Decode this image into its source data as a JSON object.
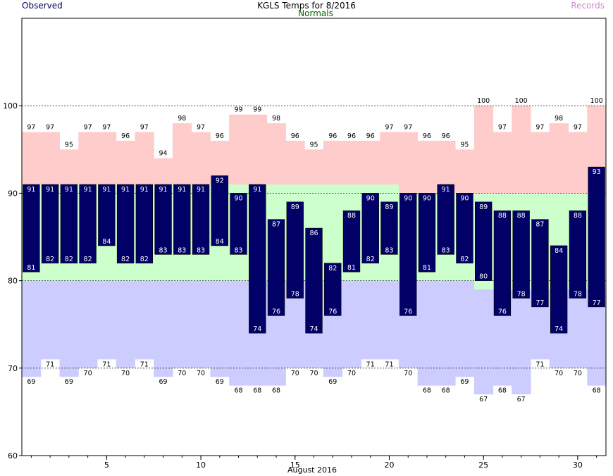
{
  "header": {
    "observed_label": "Observed",
    "title": "KGLS Temps for 8/2016",
    "normals_label": "Normals",
    "records_label": "Records"
  },
  "colors": {
    "observed_bar": "#000066",
    "record_high_fill": "#ffcccc",
    "normal_fill": "#ccffcc",
    "record_low_fill": "#ccccff",
    "observed_text": "#000066",
    "normals_text": "#006600",
    "records_text": "#cc88cc"
  },
  "chart_data": {
    "type": "bar",
    "title": "KGLS Temps for 8/2016",
    "xlabel": "August 2016",
    "ylabel": "",
    "ylim": [
      60,
      110
    ],
    "yticks": [
      60,
      70,
      80,
      90,
      100
    ],
    "xticks": [
      5,
      10,
      15,
      20,
      25,
      30
    ],
    "grid": true,
    "days": [
      1,
      2,
      3,
      4,
      5,
      6,
      7,
      8,
      9,
      10,
      11,
      12,
      13,
      14,
      15,
      16,
      17,
      18,
      19,
      20,
      21,
      22,
      23,
      24,
      25,
      26,
      27,
      28,
      29,
      30,
      31
    ],
    "series": [
      {
        "name": "Observed High",
        "values": [
          91,
          91,
          91,
          91,
          91,
          91,
          91,
          91,
          91,
          91,
          92,
          90,
          91,
          87,
          89,
          86,
          82,
          88,
          90,
          89,
          90,
          90,
          91,
          90,
          89,
          88,
          88,
          87,
          84,
          88,
          93
        ]
      },
      {
        "name": "Observed Low",
        "values": [
          81,
          82,
          82,
          82,
          84,
          82,
          82,
          83,
          83,
          83,
          84,
          83,
          74,
          76,
          78,
          74,
          76,
          81,
          82,
          83,
          76,
          81,
          83,
          82,
          80,
          76,
          78,
          77,
          74,
          78,
          77
        ]
      },
      {
        "name": "Record High",
        "values": [
          97,
          97,
          95,
          97,
          97,
          96,
          97,
          94,
          98,
          97,
          96,
          99,
          99,
          98,
          96,
          95,
          96,
          96,
          96,
          97,
          97,
          96,
          96,
          95,
          100,
          97,
          100,
          97,
          98,
          97,
          100
        ]
      },
      {
        "name": "Record Low",
        "values": [
          69,
          71,
          69,
          70,
          71,
          70,
          71,
          69,
          70,
          70,
          69,
          68,
          68,
          68,
          70,
          70,
          69,
          70,
          71,
          71,
          70,
          68,
          68,
          69,
          67,
          68,
          67,
          71,
          70,
          70,
          68
        ]
      },
      {
        "name": "Normal High",
        "values": [
          91,
          91,
          91,
          91,
          91,
          91,
          91,
          91,
          91,
          91,
          91,
          91,
          91,
          91,
          91,
          91,
          91,
          91,
          91,
          91,
          90,
          90,
          90,
          90,
          90,
          90,
          90,
          90,
          90,
          90,
          90
        ]
      },
      {
        "name": "Normal Low",
        "values": [
          80,
          80,
          80,
          80,
          80,
          80,
          80,
          80,
          80,
          80,
          80,
          80,
          80,
          80,
          80,
          80,
          80,
          80,
          80,
          80,
          80,
          80,
          80,
          80,
          79,
          79,
          79,
          79,
          79,
          79,
          79
        ]
      }
    ]
  }
}
